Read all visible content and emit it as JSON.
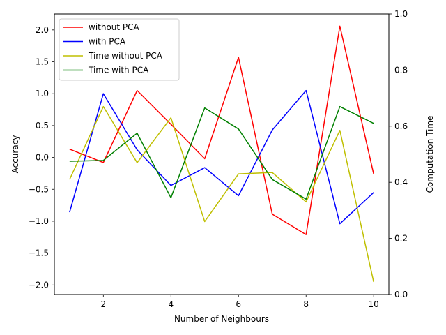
{
  "chart_data": {
    "type": "line",
    "xlabel": "Number of Neighbours",
    "ylabel_left": "Accuracy",
    "ylabel_right": "Computation Time",
    "x": [
      1,
      2,
      3,
      4,
      5,
      6,
      7,
      8,
      9,
      10
    ],
    "xticks": [
      2,
      4,
      6,
      8,
      10
    ],
    "xlim": [
      0.55,
      10.45
    ],
    "ylim_left": [
      -2.15,
      2.25
    ],
    "yticks_left": [
      -2.0,
      -1.5,
      -1.0,
      -0.5,
      0.0,
      0.5,
      1.0,
      1.5,
      2.0
    ],
    "ylim_right": [
      0.0,
      1.0
    ],
    "yticks_right": [
      0.0,
      0.2,
      0.4,
      0.6,
      0.8,
      1.0
    ],
    "grid": false,
    "legend_position": "top-left",
    "series": [
      {
        "name": "without PCA",
        "axis": "left",
        "color": "#ff0000",
        "values": [
          0.13,
          -0.08,
          1.05,
          0.52,
          -0.02,
          1.57,
          -0.89,
          -1.21,
          2.06,
          -0.26
        ]
      },
      {
        "name": "with PCA",
        "axis": "left",
        "color": "#0000ff",
        "values": [
          -0.86,
          1.0,
          0.12,
          -0.44,
          -0.16,
          -0.6,
          0.43,
          1.05,
          -1.04,
          -0.55
        ]
      },
      {
        "name": "Time without PCA",
        "axis": "right",
        "color": "#bfbf00",
        "values": [
          0.41,
          0.67,
          0.47,
          0.63,
          0.26,
          0.43,
          0.435,
          0.33,
          0.585,
          0.045
        ]
      },
      {
        "name": "Time with PCA",
        "axis": "right",
        "color": "#008000",
        "values": [
          0.475,
          0.478,
          0.575,
          0.345,
          0.665,
          0.59,
          0.41,
          0.34,
          0.67,
          0.61
        ]
      }
    ]
  }
}
